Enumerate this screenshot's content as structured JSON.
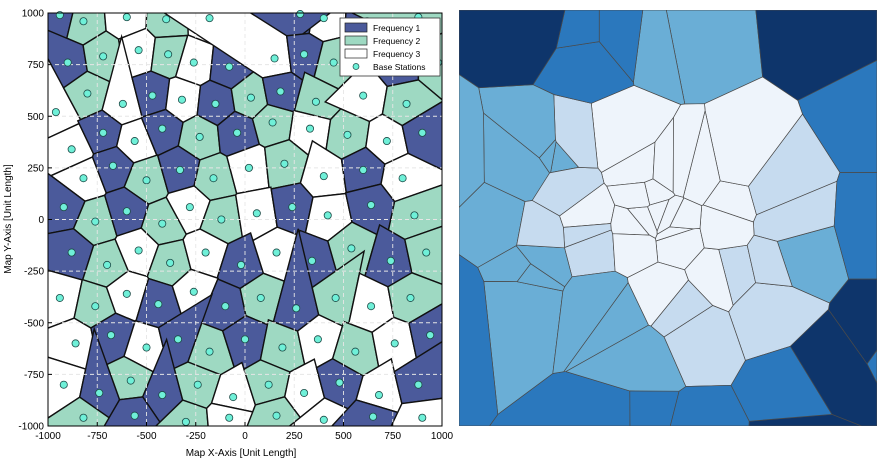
{
  "chart_data": [
    {
      "type": "scatter",
      "subtype": "voronoi-frequency-map",
      "xlabel": "Map X-Axis [Unit Length]",
      "ylabel": "Map Y-Axis [Unit Length]",
      "xlim": [
        -1000,
        1000
      ],
      "ylim": [
        -1000,
        1000
      ],
      "xticks": [
        "-1000",
        "-750",
        "-500",
        "-250",
        "0",
        "250",
        "500",
        "750",
        "1000"
      ],
      "yticks": [
        "-1000",
        "-750",
        "-500",
        "-250",
        "0",
        "250",
        "500",
        "750",
        "1000"
      ],
      "grid": true,
      "legend_position": "top-right",
      "legend": [
        {
          "name": "Frequency 1",
          "color": "#4b5a9b",
          "kind": "patch"
        },
        {
          "name": "Frequency 2",
          "color": "#9ed9c2",
          "kind": "patch"
        },
        {
          "name": "Frequency 3",
          "color": "#ffffff",
          "kind": "patch"
        },
        {
          "name": "Base Stations",
          "color": "#6ff0d8",
          "kind": "marker"
        }
      ],
      "stations": [
        [
          -940,
          990
        ],
        [
          -820,
          960
        ],
        [
          -600,
          980
        ],
        [
          -400,
          970
        ],
        [
          -180,
          975
        ],
        [
          280,
          995
        ],
        [
          400,
          975
        ],
        [
          620,
          960
        ],
        [
          880,
          980
        ],
        [
          -900,
          760
        ],
        [
          -720,
          790
        ],
        [
          -540,
          820
        ],
        [
          -390,
          800
        ],
        [
          -260,
          760
        ],
        [
          -80,
          740
        ],
        [
          150,
          780
        ],
        [
          300,
          800
        ],
        [
          450,
          760
        ],
        [
          780,
          760
        ],
        [
          980,
          760
        ],
        [
          -960,
          520
        ],
        [
          -800,
          610
        ],
        [
          -620,
          560
        ],
        [
          -470,
          600
        ],
        [
          -320,
          580
        ],
        [
          -150,
          560
        ],
        [
          30,
          590
        ],
        [
          180,
          620
        ],
        [
          360,
          570
        ],
        [
          600,
          600
        ],
        [
          820,
          560
        ],
        [
          -880,
          340
        ],
        [
          -720,
          420
        ],
        [
          -560,
          380
        ],
        [
          -420,
          440
        ],
        [
          -230,
          400
        ],
        [
          -40,
          420
        ],
        [
          140,
          470
        ],
        [
          330,
          440
        ],
        [
          520,
          410
        ],
        [
          720,
          380
        ],
        [
          900,
          420
        ],
        [
          -820,
          200
        ],
        [
          -670,
          260
        ],
        [
          -500,
          190
        ],
        [
          -330,
          240
        ],
        [
          -160,
          200
        ],
        [
          20,
          250
        ],
        [
          200,
          270
        ],
        [
          400,
          210
        ],
        [
          600,
          240
        ],
        [
          800,
          200
        ],
        [
          -920,
          60
        ],
        [
          -760,
          -10
        ],
        [
          -600,
          40
        ],
        [
          -420,
          -20
        ],
        [
          -280,
          60
        ],
        [
          -120,
          0
        ],
        [
          60,
          30
        ],
        [
          240,
          60
        ],
        [
          420,
          20
        ],
        [
          640,
          70
        ],
        [
          860,
          20
        ],
        [
          -880,
          -160
        ],
        [
          -700,
          -220
        ],
        [
          -540,
          -150
        ],
        [
          -380,
          -210
        ],
        [
          -200,
          -160
        ],
        [
          -20,
          -220
        ],
        [
          160,
          -160
        ],
        [
          340,
          -200
        ],
        [
          540,
          -140
        ],
        [
          740,
          -200
        ],
        [
          920,
          -160
        ],
        [
          -940,
          -380
        ],
        [
          -760,
          -420
        ],
        [
          -600,
          -360
        ],
        [
          -440,
          -410
        ],
        [
          -260,
          -350
        ],
        [
          -100,
          -420
        ],
        [
          80,
          -380
        ],
        [
          260,
          -430
        ],
        [
          460,
          -380
        ],
        [
          640,
          -420
        ],
        [
          840,
          -380
        ],
        [
          -860,
          -600
        ],
        [
          -680,
          -560
        ],
        [
          -500,
          -620
        ],
        [
          -340,
          -580
        ],
        [
          -180,
          -640
        ],
        [
          0,
          -580
        ],
        [
          190,
          -620
        ],
        [
          370,
          -580
        ],
        [
          560,
          -640
        ],
        [
          760,
          -600
        ],
        [
          940,
          -560
        ],
        [
          -920,
          -800
        ],
        [
          -740,
          -840
        ],
        [
          -580,
          -780
        ],
        [
          -420,
          -850
        ],
        [
          -240,
          -800
        ],
        [
          -60,
          -860
        ],
        [
          120,
          -800
        ],
        [
          300,
          -840
        ],
        [
          480,
          -790
        ],
        [
          680,
          -850
        ],
        [
          880,
          -800
        ],
        [
          -820,
          -960
        ],
        [
          -560,
          -950
        ],
        [
          -300,
          -980
        ],
        [
          -80,
          -960
        ],
        [
          160,
          -950
        ],
        [
          400,
          -970
        ],
        [
          650,
          -955
        ],
        [
          900,
          -960
        ]
      ]
    },
    {
      "type": "heatmap",
      "subtype": "voronoi-intensity-map",
      "colors": [
        "#0e356b",
        "#2b78bd",
        "#6aaed6",
        "#c6dbef",
        "#eef4fb"
      ]
    }
  ]
}
